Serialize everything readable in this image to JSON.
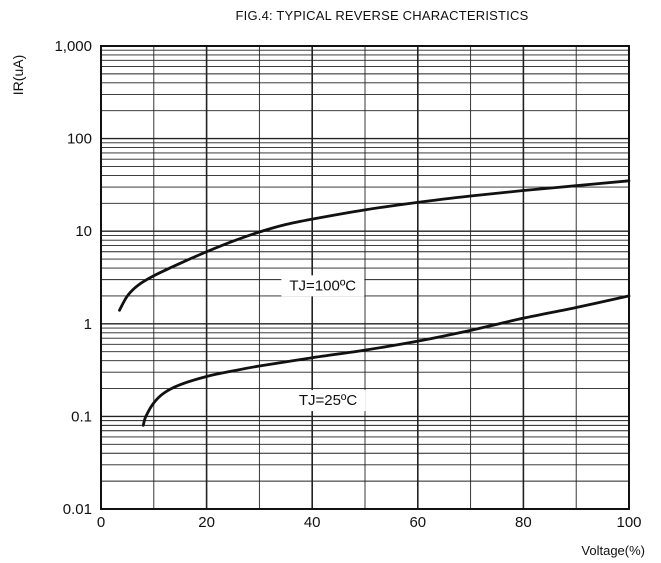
{
  "chart_data": {
    "type": "line",
    "title": "FIG.4: TYPICAL REVERSE CHARACTERISTICS",
    "xlabel": "Voltage(%)",
    "ylabel": "IR(uA)",
    "x_scale": "linear",
    "y_scale": "log",
    "xlim": [
      0,
      100
    ],
    "ylim": [
      0.01,
      1000
    ],
    "x_ticks": [
      0,
      20,
      40,
      60,
      80,
      100
    ],
    "x_tick_labels": [
      "0",
      "20",
      "40",
      "60",
      "80",
      "100"
    ],
    "y_ticks": [
      0.01,
      0.1,
      1,
      10,
      100,
      1000
    ],
    "y_tick_labels": [
      "0.01",
      "0.1",
      "1",
      "10",
      "100",
      "1,000"
    ],
    "grid": true,
    "legend": "none",
    "series": [
      {
        "name": "TJ=100ºC",
        "color": "#111111",
        "x": [
          3.5,
          5,
          7,
          10,
          15,
          20,
          25,
          30,
          35,
          40,
          50,
          60,
          70,
          80,
          90,
          100
        ],
        "y": [
          1.4,
          2.0,
          2.6,
          3.3,
          4.5,
          6.0,
          7.8,
          9.8,
          11.8,
          13.5,
          17.0,
          20.5,
          24.0,
          27.5,
          31.0,
          35.0
        ]
      },
      {
        "name": "TJ=25ºC",
        "color": "#111111",
        "x": [
          8,
          8.5,
          10,
          12,
          15,
          20,
          25,
          30,
          40,
          50,
          60,
          70,
          80,
          90,
          100
        ],
        "y": [
          0.08,
          0.1,
          0.14,
          0.18,
          0.22,
          0.27,
          0.31,
          0.35,
          0.43,
          0.52,
          0.65,
          0.85,
          1.15,
          1.5,
          2.0
        ]
      }
    ],
    "annotations": [
      {
        "text": "TJ=100ºC",
        "x": 42,
        "y": 2.6
      },
      {
        "text": "TJ=25ºC",
        "x": 43,
        "y": 0.15
      }
    ]
  }
}
